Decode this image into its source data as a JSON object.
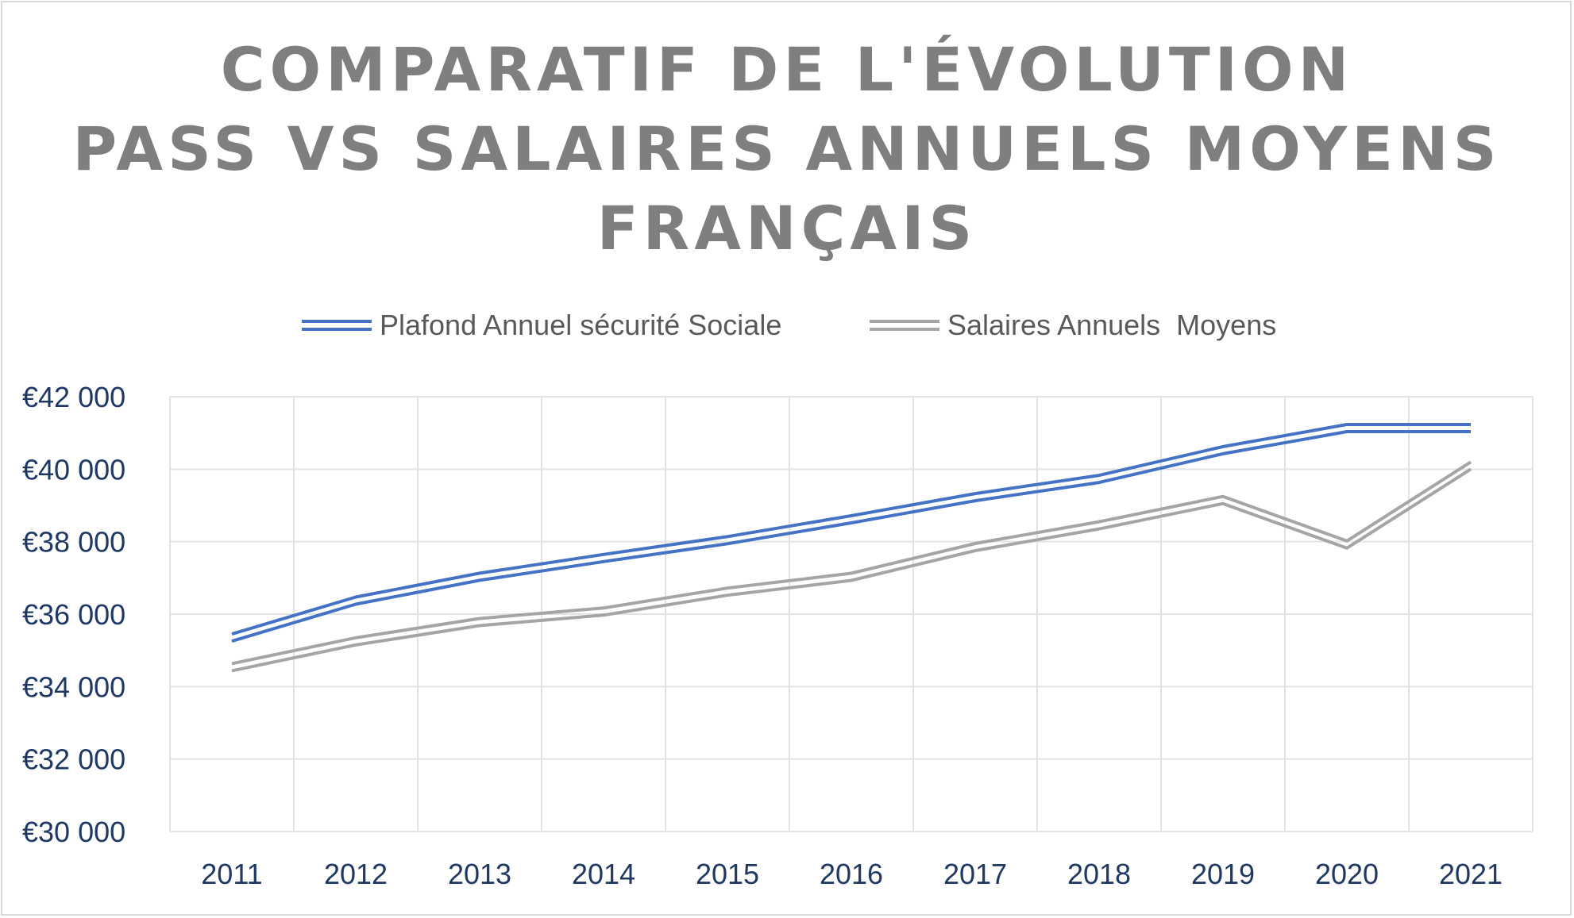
{
  "chart_data": {
    "type": "line",
    "title_lines": [
      "COMPARATIF DE L'ÉVOLUTION",
      "PASS VS SALAIRES ANNUELS MOYENS",
      "FRANÇAIS"
    ],
    "categories": [
      "2011",
      "2012",
      "2013",
      "2014",
      "2015",
      "2016",
      "2017",
      "2018",
      "2019",
      "2020",
      "2021"
    ],
    "series": [
      {
        "name": "Plafond Annuel sécurité Sociale",
        "color": "#4472c4",
        "values": [
          35352,
          36372,
          37032,
          37548,
          38040,
          38616,
          39228,
          39732,
          40524,
          41136,
          41136
        ]
      },
      {
        "name": "Salaires Annuels  Moyens",
        "color": "#a5a5a5",
        "values": [
          34536,
          35250,
          35780,
          36070,
          36620,
          37030,
          37850,
          38450,
          39150,
          37920,
          40100
        ]
      }
    ],
    "y_tick_labels": [
      "€42 000",
      "€40 000",
      "€38 000",
      "€36 000",
      "€34 000",
      "€32 000",
      "€30 000"
    ],
    "ylim": [
      30000,
      42000
    ],
    "y_step": 2000,
    "grid": true,
    "legend_position": "top"
  }
}
